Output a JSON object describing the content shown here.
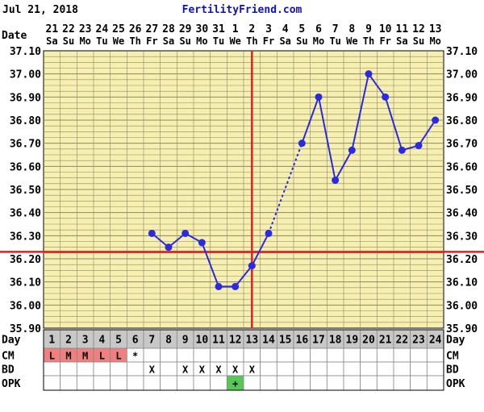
{
  "header": {
    "date_text": "Jul 21, 2018",
    "site_name": "FertilityFriend.com"
  },
  "row_labels": {
    "date": "Date",
    "day": "Day",
    "cm": "CM",
    "bd": "BD",
    "opk": "OPK"
  },
  "colors": {
    "chart_bg": "#f7efb0",
    "grid": "#8a8a6a",
    "temp_line": "#2a2ae0",
    "coverline": "#e02020",
    "day_row_bg": "#c8c8c8",
    "cm_fill": "#f08080",
    "opk_fill": "#55c855",
    "header_link": "#1010c8"
  },
  "chart_data": {
    "type": "line",
    "title": "",
    "xlabel": "Day",
    "ylabel": "",
    "cycle_days": [
      1,
      2,
      3,
      4,
      5,
      6,
      7,
      8,
      9,
      10,
      11,
      12,
      13,
      14,
      15,
      16,
      17,
      18,
      19,
      20,
      21,
      22,
      23,
      24
    ],
    "dates": [
      "21",
      "22",
      "23",
      "24",
      "25",
      "26",
      "27",
      "28",
      "29",
      "30",
      "31",
      "1",
      "2",
      "3",
      "4",
      "5",
      "6",
      "7",
      "8",
      "9",
      "10",
      "11",
      "12",
      "13"
    ],
    "weekdays": [
      "Sa",
      "Su",
      "Mo",
      "Tu",
      "We",
      "Th",
      "Fr",
      "Sa",
      "Su",
      "Mo",
      "Tu",
      "We",
      "Th",
      "Fr",
      "Sa",
      "Su",
      "Mo",
      "Tu",
      "We",
      "Th",
      "Fr",
      "Sa",
      "Su",
      "Mo"
    ],
    "ylim": [
      35.9,
      37.1
    ],
    "y_ticks": [
      "35.90",
      "36.00",
      "36.10",
      "36.20",
      "36.30",
      "36.40",
      "36.50",
      "36.60",
      "36.70",
      "36.80",
      "36.90",
      "37.00",
      "37.10"
    ],
    "series": [
      {
        "values": [
          null,
          null,
          null,
          null,
          null,
          null,
          36.31,
          36.25,
          36.31,
          36.27,
          36.08,
          36.08,
          36.17,
          36.31,
          null,
          36.7,
          36.9,
          36.54,
          36.67,
          37.0,
          36.9,
          36.67,
          36.69,
          36.8
        ]
      }
    ],
    "coverline": 36.23,
    "ovulation_day": 13,
    "cervical_mucus": [
      "L",
      "M",
      "M",
      "L",
      "L",
      "*",
      "",
      "",
      "",
      "",
      "",
      "",
      "",
      "",
      "",
      "",
      "",
      "",
      "",
      "",
      "",
      "",
      "",
      ""
    ],
    "bd": [
      "",
      "",
      "",
      "",
      "",
      "",
      "X",
      "",
      "X",
      "X",
      "X",
      "X",
      "X",
      "",
      "",
      "",
      "",
      "",
      "",
      "",
      "",
      "",
      "",
      ""
    ],
    "opk": [
      "",
      "",
      "",
      "",
      "",
      "",
      "",
      "",
      "",
      "",
      "",
      "+",
      "",
      "",
      "",
      "",
      "",
      "",
      "",
      "",
      "",
      "",
      "",
      ""
    ],
    "grid": true
  }
}
